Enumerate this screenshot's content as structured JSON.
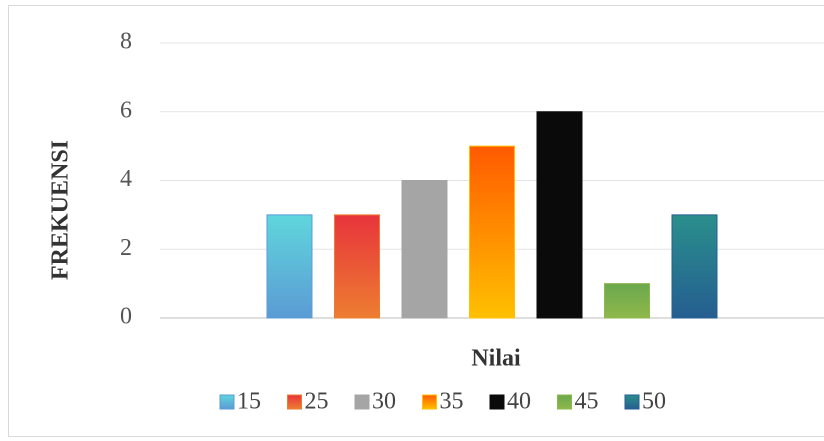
{
  "chart_data": {
    "type": "bar",
    "x_label": "Nilai",
    "y_label": "FREKUENSI",
    "categories": [
      null
    ],
    "series": [
      {
        "name": "15",
        "color": [
          "#5fd6dc",
          "#5b9bd5"
        ],
        "values": [
          3
        ]
      },
      {
        "name": "25",
        "color": [
          "#e8343c",
          "#ed7d31"
        ],
        "values": [
          3
        ]
      },
      {
        "name": "30",
        "color": [
          "#a5a5a5",
          "#a5a5a5"
        ],
        "values": [
          4
        ]
      },
      {
        "name": "35",
        "color": [
          "#ff5a00",
          "#ffc000"
        ],
        "values": [
          5
        ]
      },
      {
        "name": "40",
        "color": [
          "#0a0a0a",
          "#0a0a0a"
        ],
        "values": [
          6
        ]
      },
      {
        "name": "45",
        "color": [
          "#6aa84f",
          "#8fb84a"
        ],
        "values": [
          1
        ]
      },
      {
        "name": "50",
        "color": [
          "#2a8f8c",
          "#255e91"
        ],
        "values": [
          3
        ]
      }
    ],
    "ylim": [
      0,
      8
    ],
    "yticks": [
      0,
      2,
      4,
      6,
      8
    ],
    "grid": true,
    "legend": "bottom"
  }
}
